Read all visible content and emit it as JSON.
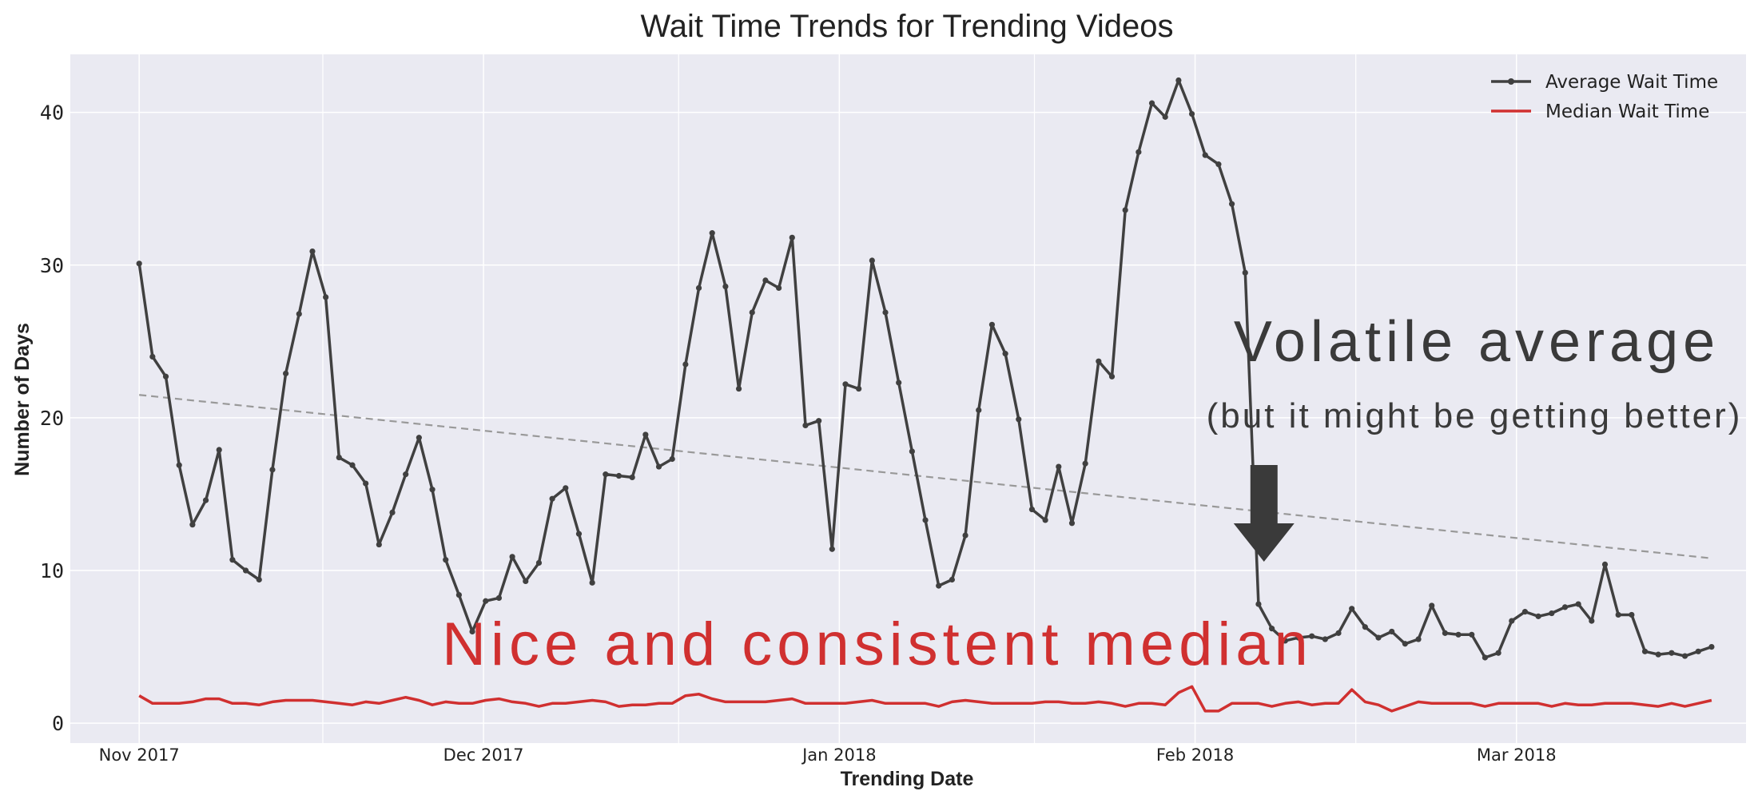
{
  "chart_data": {
    "type": "line",
    "title": "Wait Time Trends for Trending Videos",
    "xlabel": "Trending Date",
    "ylabel": "Number of Days",
    "x_start": "2017-11-14",
    "x_end": "2018-03-31",
    "xlim": [
      "2017-11-08",
      "2018-04-03"
    ],
    "ylim": [
      -1.3,
      43.8
    ],
    "x_ticks": [
      {
        "date": "2017-11-14",
        "label": "Nov 2017"
      },
      {
        "date": "2017-12-14",
        "label": "Dec 2017"
      },
      {
        "date": "2018-01-14",
        "label": "Jan 2018"
      },
      {
        "date": "2018-02-14",
        "label": "Feb 2018"
      },
      {
        "date": "2018-03-14",
        "label": "Mar 2018"
      }
    ],
    "x_minor_gridlines": [
      "2017-11-30",
      "2017-12-31",
      "2018-01-31",
      "2018-02-28"
    ],
    "y_ticks": [
      0,
      10,
      20,
      30,
      40
    ],
    "grid": true,
    "legend_position": "top-right",
    "background": "#eaeaf2",
    "series": [
      {
        "name": "Average Wait Time",
        "color": "#404040",
        "marker": "dot",
        "values": [
          30.1,
          24.0,
          22.7,
          16.9,
          13.0,
          14.6,
          17.9,
          10.7,
          10.0,
          9.4,
          16.6,
          22.9,
          26.8,
          30.9,
          27.9,
          17.4,
          16.9,
          15.7,
          11.7,
          13.8,
          16.3,
          18.7,
          15.3,
          10.7,
          8.4,
          6.0,
          8.0,
          8.2,
          10.9,
          9.3,
          10.5,
          14.7,
          15.4,
          12.4,
          9.2,
          16.3,
          16.2,
          16.1,
          18.9,
          16.8,
          17.3,
          23.5,
          28.5,
          32.1,
          28.6,
          21.9,
          26.9,
          29.0,
          28.5,
          31.8,
          19.5,
          19.8,
          11.4,
          22.2,
          21.9,
          30.3,
          26.9,
          22.3,
          17.8,
          13.3,
          9.0,
          9.4,
          12.3,
          20.5,
          26.1,
          24.2,
          19.9,
          14.0,
          13.3,
          16.8,
          13.1,
          17.0,
          23.7,
          22.7,
          33.6,
          37.4,
          40.6,
          39.7,
          42.1,
          39.9,
          37.2,
          36.6,
          34.0,
          29.5,
          7.8,
          6.2,
          5.4,
          5.6,
          5.7,
          5.5,
          5.9,
          7.5,
          6.3,
          5.6,
          6.0,
          5.2,
          5.5,
          7.7,
          5.9,
          5.8,
          5.8,
          4.3,
          4.6,
          6.7,
          7.3,
          7.0,
          7.2,
          7.6,
          7.8,
          6.7,
          10.4,
          7.1,
          7.1,
          4.7,
          4.5,
          4.6,
          4.4,
          4.7,
          5.0
        ]
      },
      {
        "name": "Median Wait Time",
        "color": "#d03030",
        "marker": "none",
        "values": [
          1.8,
          1.3,
          1.3,
          1.3,
          1.4,
          1.6,
          1.6,
          1.3,
          1.3,
          1.2,
          1.4,
          1.5,
          1.5,
          1.5,
          1.4,
          1.3,
          1.2,
          1.4,
          1.3,
          1.5,
          1.7,
          1.5,
          1.2,
          1.4,
          1.3,
          1.3,
          1.5,
          1.6,
          1.4,
          1.3,
          1.1,
          1.3,
          1.3,
          1.4,
          1.5,
          1.4,
          1.1,
          1.2,
          1.2,
          1.3,
          1.3,
          1.8,
          1.9,
          1.6,
          1.4,
          1.4,
          1.4,
          1.4,
          1.5,
          1.6,
          1.3,
          1.3,
          1.3,
          1.3,
          1.4,
          1.5,
          1.3,
          1.3,
          1.3,
          1.3,
          1.1,
          1.4,
          1.5,
          1.4,
          1.3,
          1.3,
          1.3,
          1.3,
          1.4,
          1.4,
          1.3,
          1.3,
          1.4,
          1.3,
          1.1,
          1.3,
          1.3,
          1.2,
          2.0,
          2.4,
          0.8,
          0.8,
          1.3,
          1.3,
          1.3,
          1.1,
          1.3,
          1.4,
          1.2,
          1.3,
          1.3,
          2.2,
          1.4,
          1.2,
          0.8,
          1.1,
          1.4,
          1.3,
          1.3,
          1.3,
          1.3,
          1.1,
          1.3,
          1.3,
          1.3,
          1.3,
          1.1,
          1.3,
          1.2,
          1.2,
          1.3,
          1.3,
          1.3,
          1.2,
          1.1,
          1.3,
          1.1,
          1.3,
          1.5
        ]
      }
    ],
    "trendline": {
      "from": 21.5,
      "to": 10.8,
      "color": "#999999",
      "style": "dashed"
    },
    "annotations": {
      "headline": "Volatile average",
      "subline": "(but it might be getting better)",
      "median_note": "Nice and consistent median",
      "headline_color": "#3a3a3a",
      "median_color": "#d03030",
      "arrow": {
        "direction": "down",
        "color": "#3a3a3a",
        "points_at": "2018-02-20"
      }
    }
  }
}
